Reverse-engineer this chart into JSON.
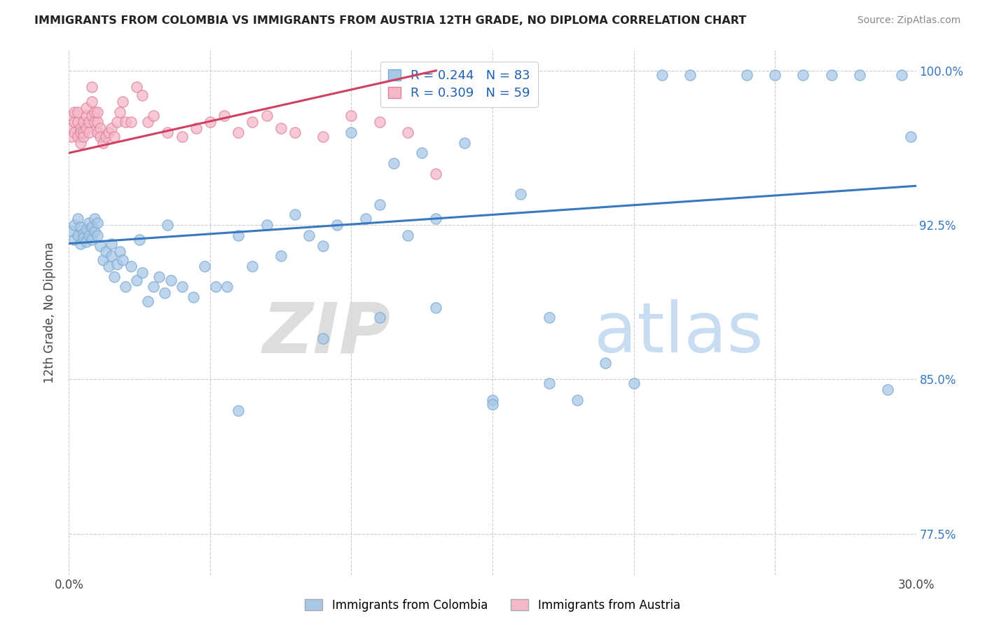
{
  "title": "IMMIGRANTS FROM COLOMBIA VS IMMIGRANTS FROM AUSTRIA 12TH GRADE, NO DIPLOMA CORRELATION CHART",
  "source": "Source: ZipAtlas.com",
  "ylabel": "12th Grade, No Diploma",
  "xlim": [
    0.0,
    0.3
  ],
  "ylim": [
    0.755,
    1.01
  ],
  "xtick_vals": [
    0.0,
    0.05,
    0.1,
    0.15,
    0.2,
    0.25,
    0.3
  ],
  "xticklabels": [
    "0.0%",
    "",
    "",
    "",
    "",
    "",
    "30.0%"
  ],
  "ytick_vals": [
    0.775,
    0.85,
    0.925,
    1.0
  ],
  "yticklabels": [
    "77.5%",
    "85.0%",
    "92.5%",
    "100.0%"
  ],
  "legend_r_colombia": "R = 0.244",
  "legend_n_colombia": "N = 83",
  "legend_r_austria": "R = 0.309",
  "legend_n_austria": "N = 59",
  "colombia_color": "#a8c8e8",
  "colombia_edge": "#7aaad0",
  "austria_color": "#f5b8c8",
  "austria_edge": "#e080a0",
  "colombia_line_color": "#3878c0",
  "austria_line_color": "#d04060",
  "watermark_zip": "ZIP",
  "watermark_atlas": "atlas",
  "colombia_x": [
    0.001,
    0.002,
    0.002,
    0.003,
    0.003,
    0.004,
    0.004,
    0.005,
    0.005,
    0.006,
    0.006,
    0.007,
    0.007,
    0.008,
    0.008,
    0.009,
    0.009,
    0.01,
    0.01,
    0.011,
    0.012,
    0.013,
    0.014,
    0.015,
    0.016,
    0.017,
    0.018,
    0.019,
    0.02,
    0.022,
    0.024,
    0.026,
    0.028,
    0.03,
    0.032,
    0.034,
    0.036,
    0.04,
    0.044,
    0.048,
    0.052,
    0.056,
    0.06,
    0.065,
    0.07,
    0.075,
    0.08,
    0.085,
    0.09,
    0.095,
    0.1,
    0.105,
    0.11,
    0.115,
    0.12,
    0.125,
    0.13,
    0.14,
    0.15,
    0.16,
    0.17,
    0.18,
    0.19,
    0.2,
    0.21,
    0.22,
    0.24,
    0.25,
    0.26,
    0.27,
    0.28,
    0.29,
    0.295,
    0.298,
    0.06,
    0.09,
    0.11,
    0.13,
    0.15,
    0.17,
    0.015,
    0.025,
    0.035
  ],
  "colombia_y": [
    0.922,
    0.918,
    0.925,
    0.92,
    0.928,
    0.916,
    0.924,
    0.921,
    0.919,
    0.923,
    0.917,
    0.926,
    0.92,
    0.924,
    0.918,
    0.922,
    0.928,
    0.92,
    0.926,
    0.915,
    0.908,
    0.912,
    0.905,
    0.91,
    0.9,
    0.906,
    0.912,
    0.908,
    0.895,
    0.905,
    0.898,
    0.902,
    0.888,
    0.895,
    0.9,
    0.892,
    0.898,
    0.895,
    0.89,
    0.905,
    0.895,
    0.895,
    0.92,
    0.905,
    0.925,
    0.91,
    0.93,
    0.92,
    0.915,
    0.925,
    0.97,
    0.928,
    0.935,
    0.955,
    0.92,
    0.96,
    0.928,
    0.965,
    0.84,
    0.94,
    0.88,
    0.84,
    0.858,
    0.848,
    0.998,
    0.998,
    0.998,
    0.998,
    0.998,
    0.998,
    0.998,
    0.845,
    0.998,
    0.968,
    0.835,
    0.87,
    0.88,
    0.885,
    0.838,
    0.848,
    0.916,
    0.918,
    0.925
  ],
  "austria_x": [
    0.001,
    0.001,
    0.001,
    0.002,
    0.002,
    0.002,
    0.003,
    0.003,
    0.003,
    0.004,
    0.004,
    0.004,
    0.005,
    0.005,
    0.005,
    0.006,
    0.006,
    0.006,
    0.007,
    0.007,
    0.008,
    0.008,
    0.008,
    0.009,
    0.009,
    0.01,
    0.01,
    0.01,
    0.011,
    0.011,
    0.012,
    0.013,
    0.014,
    0.015,
    0.016,
    0.017,
    0.018,
    0.019,
    0.02,
    0.022,
    0.024,
    0.026,
    0.028,
    0.03,
    0.035,
    0.04,
    0.045,
    0.05,
    0.055,
    0.06,
    0.065,
    0.07,
    0.075,
    0.08,
    0.09,
    0.1,
    0.11,
    0.12,
    0.13
  ],
  "austria_y": [
    0.972,
    0.978,
    0.968,
    0.975,
    0.98,
    0.97,
    0.968,
    0.975,
    0.98,
    0.972,
    0.965,
    0.97,
    0.975,
    0.97,
    0.968,
    0.972,
    0.978,
    0.982,
    0.975,
    0.97,
    0.978,
    0.985,
    0.992,
    0.975,
    0.98,
    0.97,
    0.975,
    0.98,
    0.972,
    0.968,
    0.965,
    0.968,
    0.97,
    0.972,
    0.968,
    0.975,
    0.98,
    0.985,
    0.975,
    0.975,
    0.992,
    0.988,
    0.975,
    0.978,
    0.97,
    0.968,
    0.972,
    0.975,
    0.978,
    0.97,
    0.975,
    0.978,
    0.972,
    0.97,
    0.968,
    0.978,
    0.975,
    0.97,
    0.95
  ],
  "col_line_x": [
    0.0,
    0.3
  ],
  "col_line_y": [
    0.916,
    0.944
  ],
  "aut_line_x": [
    0.0,
    0.13
  ],
  "aut_line_y": [
    0.96,
    1.0
  ]
}
